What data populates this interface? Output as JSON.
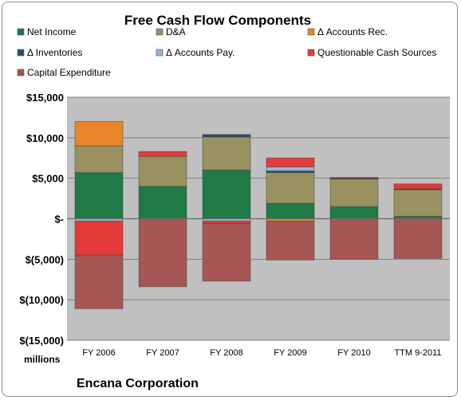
{
  "chart_data": {
    "type": "bar",
    "stacked": true,
    "title": "Free Cash Flow Components",
    "subtitle": "",
    "ylabel": "",
    "unit_label": "millions",
    "footer": "Encana Corporation",
    "categories": [
      "FY 2006",
      "FY 2007",
      "FY 2008",
      "FY 2009",
      "FY 2010",
      "TTM 9-2011"
    ],
    "ylim": [
      -15000,
      15000
    ],
    "yticks": [
      15000,
      10000,
      5000,
      0,
      -5000,
      -10000,
      -15000
    ],
    "ytick_labels": [
      "$15,000",
      "$10,000",
      "$5,000",
      "$-",
      "$(5,000)",
      "$(10,000)",
      "$(15,000)"
    ],
    "grid": true,
    "legend_position": "top",
    "series": [
      {
        "name": "Net Income",
        "color": "#1f7a45",
        "values": [
          5700,
          4000,
          6000,
          1900,
          1500,
          300
        ]
      },
      {
        "name": "D&A",
        "color": "#9a9160",
        "values": [
          3300,
          3700,
          4100,
          3800,
          3400,
          3300
        ]
      },
      {
        "name": "Δ Accounts Rec.",
        "color": "#e9862a",
        "values": [
          3000,
          0,
          0,
          -300,
          0,
          0
        ]
      },
      {
        "name": "Δ Inventories",
        "color": "#2f4b6e",
        "values": [
          0,
          0,
          300,
          200,
          100,
          100
        ]
      },
      {
        "name": "Δ Accounts Pay.",
        "color": "#9ab3d6",
        "values": [
          -300,
          0,
          -300,
          500,
          0,
          0
        ]
      },
      {
        "name": "Questionable Cash Sources",
        "color": "#e53a3a",
        "values": [
          -4200,
          600,
          -300,
          1100,
          100,
          600
        ]
      },
      {
        "name": "Capital Expenditure",
        "color": "#a65654",
        "values": [
          -6600,
          -8400,
          -7100,
          -4800,
          -5000,
          -4900
        ]
      }
    ]
  }
}
